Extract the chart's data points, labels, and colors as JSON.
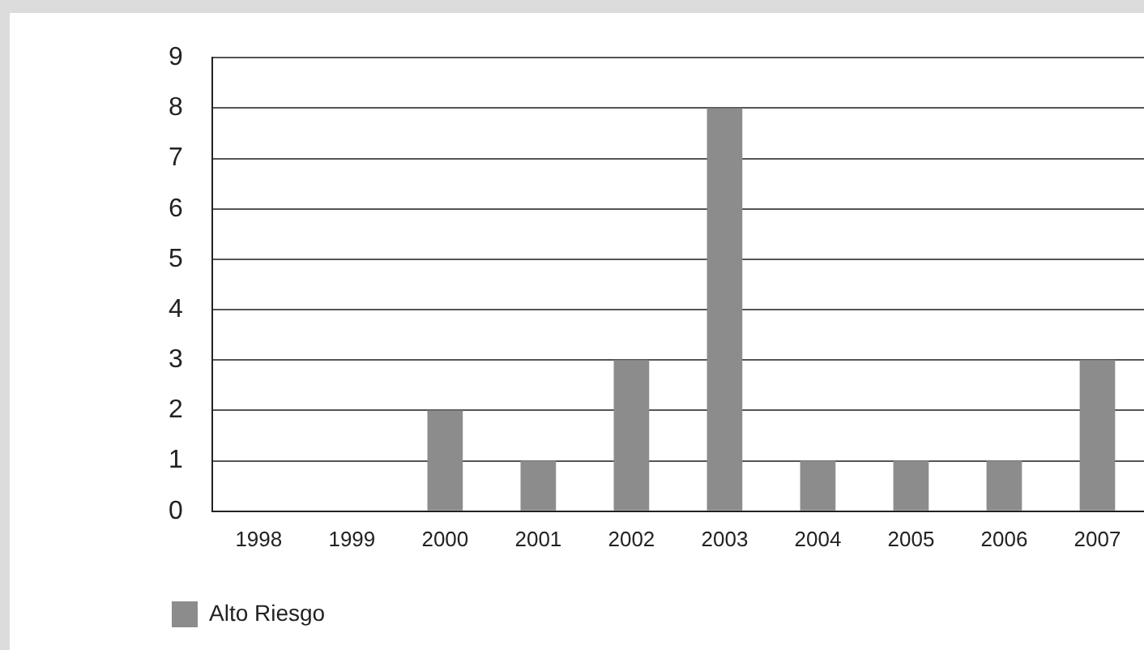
{
  "chart_data": {
    "type": "bar",
    "categories": [
      "1998",
      "1999",
      "2000",
      "2001",
      "2002",
      "2003",
      "2004",
      "2005",
      "2006",
      "2007"
    ],
    "series": [
      {
        "name": "Alto Riesgo",
        "color": "#8c8c8c",
        "values": [
          0,
          0,
          2,
          1,
          3,
          8,
          1,
          1,
          1,
          3
        ]
      }
    ],
    "ylim": [
      0,
      9
    ],
    "yticks": [
      0,
      1,
      2,
      3,
      4,
      5,
      6,
      7,
      8,
      9
    ],
    "grid": "y",
    "legend": "bottom left"
  }
}
